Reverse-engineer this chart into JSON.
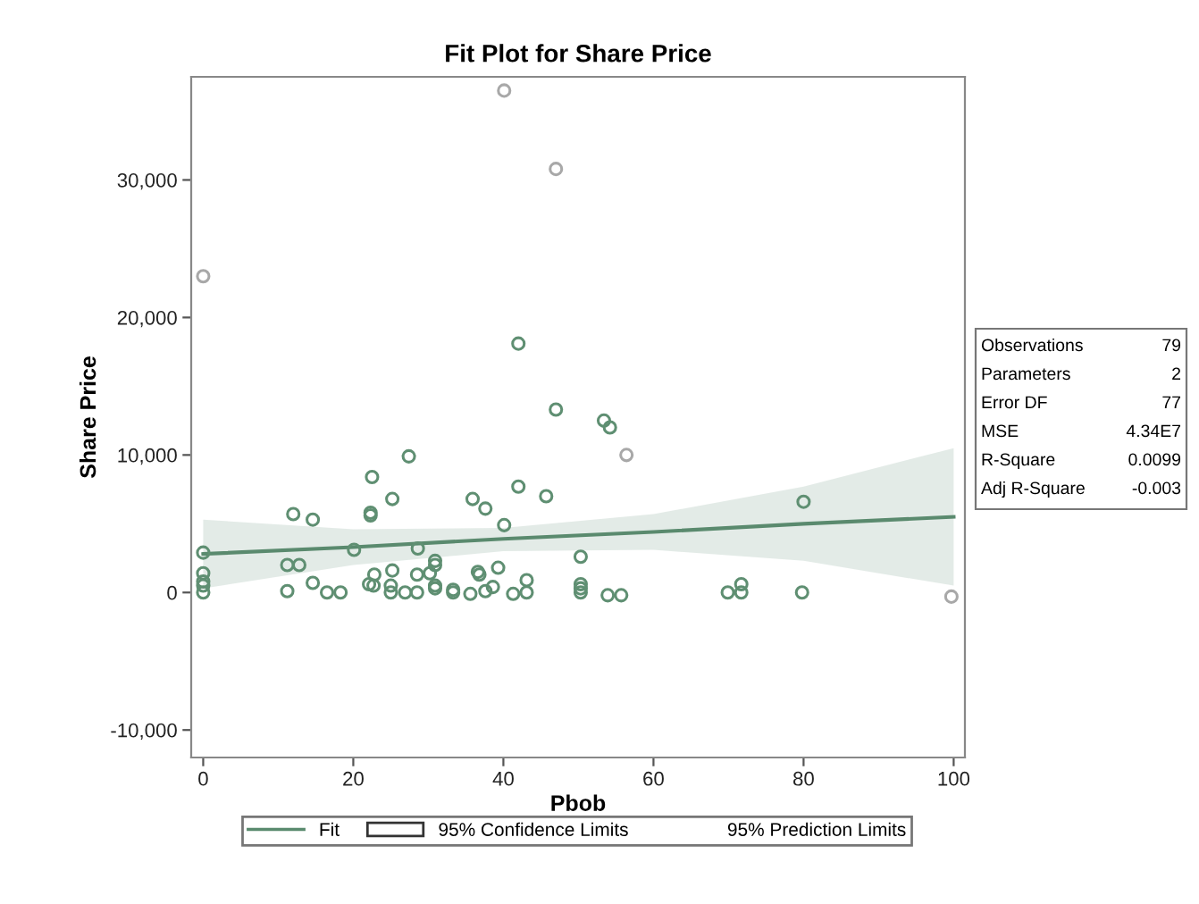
{
  "chart_data": {
    "type": "scatter",
    "title": "Fit Plot for Share Price",
    "xlabel": "Pbob",
    "ylabel": "Share Price",
    "xlim": [
      -1.6,
      101.5
    ],
    "ylim": [
      -12000,
      37500
    ],
    "xticks": [
      0,
      20,
      40,
      60,
      80,
      100
    ],
    "yticks": [
      {
        "value": -10000,
        "label": "-10,000"
      },
      {
        "value": 0,
        "label": "0"
      },
      {
        "value": 10000,
        "label": "10,000"
      },
      {
        "value": 20000,
        "label": "20,000"
      },
      {
        "value": 30000,
        "label": "30,000"
      }
    ],
    "grid": false,
    "legend": "bottom",
    "series": [
      {
        "type": "line",
        "name": "Fit",
        "color": "#5a8a6e",
        "x": [
          0,
          20,
          40,
          60,
          80,
          100
        ],
        "values": [
          2800,
          3300,
          3900,
          4400,
          5000,
          5500
        ],
        "lower": [
          300,
          2000,
          3000,
          3100,
          2300,
          500
        ],
        "upper": [
          5300,
          4600,
          4700,
          5700,
          7700,
          10500
        ]
      },
      {
        "marker": "circle",
        "x": [
          40.1,
          47.0,
          0,
          42.0,
          47.0,
          53.4,
          54.2,
          56.4,
          27.4,
          22.5,
          25.2,
          22.3,
          22.3,
          12.0,
          14.6,
          35.9,
          37.6,
          42.0,
          45.7,
          40.1,
          80.0,
          0,
          20.1,
          28.6,
          50.3,
          11.2,
          12.8,
          30.9,
          30.9,
          25.2,
          39.3,
          36.6,
          36.8,
          22.8,
          28.5,
          30.2,
          43.1,
          0,
          0,
          0,
          0,
          22.1,
          22.7,
          30.9,
          30.9,
          14.6,
          11.2,
          16.5,
          18.3,
          25.0,
          25.0,
          26.9,
          28.5,
          33.3,
          33.3,
          35.6,
          37.6,
          38.6,
          41.3,
          43.1,
          50.3,
          50.3,
          50.3,
          53.9,
          55.7,
          69.9,
          71.7,
          71.7,
          79.8,
          99.7
        ],
        "values": [
          36500,
          30800,
          23000,
          18100,
          13300,
          12500,
          12000,
          10000,
          9900,
          8400,
          6800,
          5800,
          5600,
          5700,
          5300,
          6800,
          6100,
          7700,
          7000,
          4900,
          6600,
          2900,
          3100,
          3200,
          2600,
          2000,
          2000,
          2300,
          2000,
          1600,
          1800,
          1500,
          1300,
          1300,
          1300,
          1400,
          900,
          1400,
          800,
          500,
          0,
          600,
          500,
          500,
          300,
          700,
          100,
          0,
          0,
          500,
          0,
          0,
          0,
          200,
          0,
          -100,
          100,
          400,
          -100,
          0,
          600,
          300,
          0,
          -200,
          -200,
          0,
          600,
          0,
          0,
          -300
        ],
        "colors": [
          "#a8a8a8",
          "#a8a8a8",
          "#a8a8a8",
          "#5f8f72",
          "#5f8f72",
          "#5f8f72",
          "#5f8f72",
          "#a8a8a8",
          "#5f8f72",
          "#5f8f72",
          "#5f8f72",
          "#5f8f72",
          "#5f8f72",
          "#5f8f72",
          "#5f8f72",
          "#5f8f72",
          "#5f8f72",
          "#5f8f72",
          "#5f8f72",
          "#5f8f72",
          "#5f8f72",
          "#5f8f72",
          "#5f8f72",
          "#5f8f72",
          "#5f8f72",
          "#5f8f72",
          "#5f8f72",
          "#5f8f72",
          "#5f8f72",
          "#5f8f72",
          "#5f8f72",
          "#5f8f72",
          "#5f8f72",
          "#5f8f72",
          "#5f8f72",
          "#5f8f72",
          "#5f8f72",
          "#5f8f72",
          "#5f8f72",
          "#5f8f72",
          "#5f8f72",
          "#5f8f72",
          "#5f8f72",
          "#5f8f72",
          "#5f8f72",
          "#5f8f72",
          "#5f8f72",
          "#5f8f72",
          "#5f8f72",
          "#5f8f72",
          "#5f8f72",
          "#5f8f72",
          "#5f8f72",
          "#5f8f72",
          "#5f8f72",
          "#5f8f72",
          "#5f8f72",
          "#5f8f72",
          "#5f8f72",
          "#5f8f72",
          "#5f8f72",
          "#5f8f72",
          "#5f8f72",
          "#5f8f72",
          "#5f8f72",
          "#5f8f72",
          "#5f8f72",
          "#5f8f72",
          "#5f8f72",
          "#a8a8a8"
        ]
      }
    ],
    "annotations": [
      "95% Confidence Limits",
      "95% Prediction Limits",
      "Observations",
      "79",
      "Parameters",
      "2",
      "Error DF",
      "77",
      "MSE",
      "4.34E7",
      "R-Square",
      "0.0099",
      "Adj R-Square",
      "-0.003"
    ]
  }
}
